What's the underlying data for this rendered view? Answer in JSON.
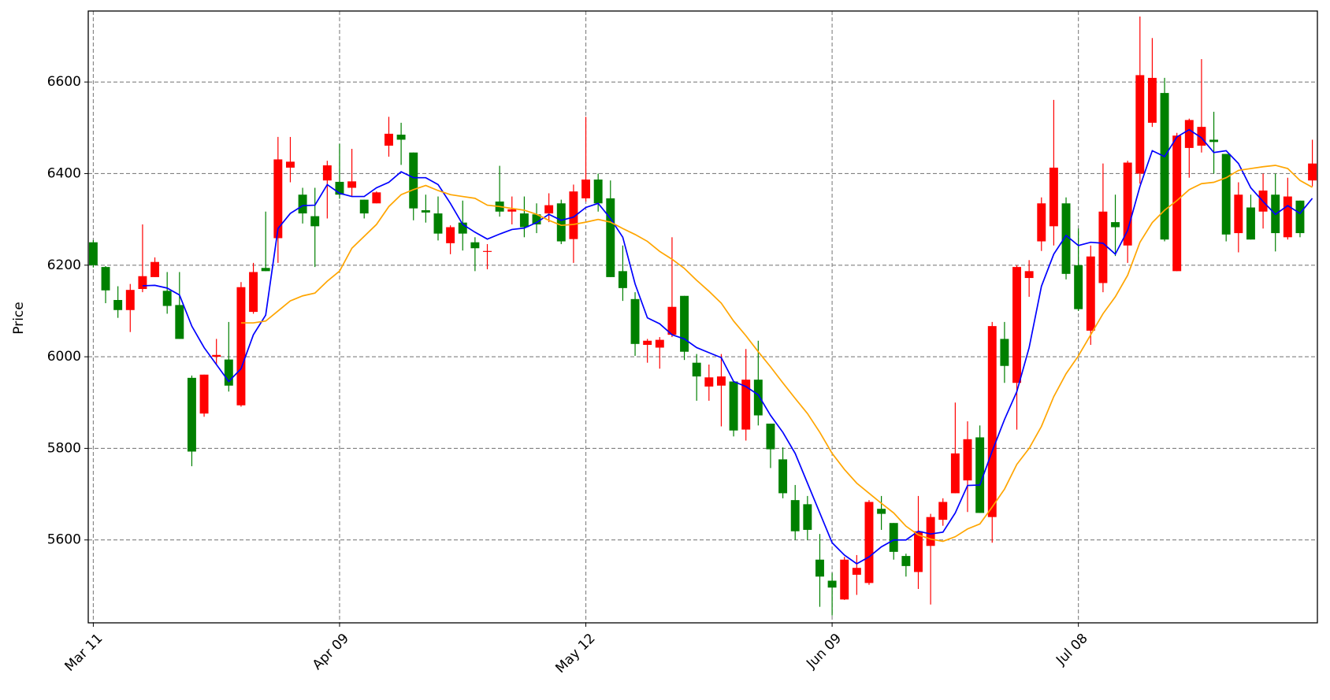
{
  "chart_data": {
    "type": "candlestick",
    "y_label": "Price",
    "ylim": [
      5419,
      6755
    ],
    "yticks": [
      5600,
      5800,
      6000,
      6200,
      6400,
      6600
    ],
    "grid": true,
    "up_color": "red",
    "down_color": "green",
    "categories": [
      "Mar 11",
      null,
      null,
      null,
      null,
      null,
      null,
      null,
      null,
      null,
      null,
      null,
      null,
      null,
      null,
      null,
      null,
      null,
      null,
      null,
      "Apr 09",
      null,
      null,
      null,
      null,
      null,
      null,
      null,
      null,
      null,
      null,
      null,
      null,
      null,
      null,
      null,
      null,
      null,
      null,
      null,
      "May 12",
      null,
      null,
      null,
      null,
      null,
      null,
      null,
      null,
      null,
      null,
      null,
      null,
      null,
      null,
      null,
      null,
      null,
      null,
      null,
      "Jun 09",
      null,
      null,
      null,
      null,
      null,
      null,
      null,
      null,
      null,
      null,
      null,
      null,
      null,
      null,
      null,
      null,
      null,
      null,
      null,
      "Jul 08",
      null,
      null,
      null,
      null,
      null,
      null,
      null,
      null,
      null,
      null,
      null,
      null,
      null,
      null,
      null,
      null,
      null,
      null,
      null
    ],
    "open": [
      6250,
      6196,
      6124,
      6102,
      6148,
      6174,
      6144,
      6113,
      5954,
      5876,
      6000,
      5994,
      5894,
      6098,
      6194,
      6259,
      6413,
      6354,
      6307,
      6385,
      6382,
      6369,
      6343,
      6335,
      6461,
      6485,
      6446,
      6320,
      6313,
      6248,
      6293,
      6250,
      6229,
      6339,
      6317,
      6313,
      6311,
      6313,
      6335,
      6257,
      6346,
      6387,
      6346,
      6187,
      6126,
      6026,
      6020,
      6048,
      6133,
      5987,
      5935,
      5937,
      5946,
      5841,
      5950,
      5854,
      5776,
      5687,
      5678,
      5557,
      5511,
      5470,
      5524,
      5506,
      5668,
      5637,
      5565,
      5530,
      5587,
      5644,
      5702,
      5730,
      5824,
      5650,
      6039,
      5943,
      6172,
      6252,
      6285,
      6335,
      6200,
      6057,
      6161,
      6294,
      6243,
      6400,
      6511,
      6576,
      6187,
      6456,
      6461,
      6474,
      6443,
      6270,
      6326,
      6317,
      6354,
      6261,
      6341,
      6385
    ],
    "high": [
      6255,
      6198,
      6154,
      6159,
      6289,
      6217,
      6185,
      6185,
      5959,
      5961,
      6039,
      6076,
      6163,
      6205,
      6317,
      6480,
      6480,
      6369,
      6369,
      6428,
      6465,
      6454,
      6343,
      6361,
      6524,
      6511,
      6446,
      6354,
      6350,
      6287,
      6341,
      6261,
      6246,
      6417,
      6350,
      6350,
      6335,
      6357,
      6343,
      6376,
      6524,
      6400,
      6385,
      6243,
      6141,
      6039,
      6043,
      6261,
      6133,
      6006,
      5983,
      6006,
      5946,
      6017,
      6035,
      5854,
      5802,
      5720,
      5696,
      5613,
      5528,
      5563,
      5567,
      5687,
      5696,
      5637,
      5570,
      5696,
      5657,
      5691,
      5900,
      5859,
      5850,
      6076,
      6076,
      6200,
      6211,
      6348,
      6561,
      6348,
      6280,
      6243,
      6422,
      6354,
      6428,
      6743,
      6696,
      6609,
      6489,
      6520,
      6650,
      6535,
      6443,
      6381,
      6354,
      6400,
      6400,
      6391,
      6341,
      6474
    ],
    "low": [
      6195,
      6117,
      6085,
      6054,
      6141,
      6174,
      6094,
      6039,
      5761,
      5869,
      5983,
      5924,
      5891,
      6094,
      6187,
      6205,
      6381,
      6291,
      6196,
      6302,
      6345,
      6350,
      6302,
      6335,
      6437,
      6419,
      6298,
      6293,
      6254,
      6224,
      6232,
      6187,
      6191,
      6306,
      6289,
      6261,
      6270,
      6294,
      6246,
      6205,
      6339,
      6317,
      6174,
      6122,
      6002,
      5987,
      5974,
      6043,
      5993,
      5904,
      5904,
      5848,
      5826,
      5817,
      5850,
      5757,
      5691,
      5600,
      5600,
      5454,
      5435,
      5469,
      5480,
      5502,
      5622,
      5557,
      5520,
      5493,
      5459,
      5631,
      5702,
      5661,
      5659,
      5594,
      5943,
      5841,
      6131,
      6231,
      6243,
      6169,
      6100,
      6026,
      6141,
      6220,
      6205,
      6378,
      6502,
      6252,
      6187,
      6391,
      6446,
      6400,
      6252,
      6228,
      6256,
      6280,
      6230,
      6256,
      6261,
      6372
    ],
    "close": [
      6200,
      6145,
      6102,
      6146,
      6176,
      6207,
      6111,
      6039,
      5793,
      5961,
      6004,
      5937,
      6152,
      6185,
      6187,
      6431,
      6426,
      6313,
      6285,
      6418,
      6354,
      6383,
      6313,
      6359,
      6487,
      6474,
      6324,
      6315,
      6269,
      6283,
      6269,
      6237,
      6231,
      6317,
      6322,
      6283,
      6289,
      6331,
      6252,
      6361,
      6387,
      6335,
      6174,
      6150,
      6028,
      6035,
      6037,
      6109,
      6011,
      5957,
      5955,
      5957,
      5839,
      5950,
      5872,
      5798,
      5702,
      5619,
      5622,
      5520,
      5496,
      5557,
      5539,
      5683,
      5657,
      5574,
      5543,
      5619,
      5650,
      5683,
      5789,
      5820,
      5659,
      6067,
      5980,
      6196,
      6187,
      6335,
      6413,
      6181,
      6104,
      6219,
      6317,
      6283,
      6424,
      6615,
      6609,
      6256,
      6483,
      6517,
      6502,
      6469,
      6267,
      6354,
      6256,
      6363,
      6270,
      6350,
      6270,
      6422
    ],
    "series": [
      {
        "color": "blue",
        "values": [
          null,
          null,
          null,
          null,
          6155,
          6156,
          6150,
          6135,
          6067,
          6020,
          5983,
          5946,
          5974,
          6048,
          6091,
          6280,
          6313,
          6330,
          6331,
          6376,
          6357,
          6350,
          6350,
          6369,
          6381,
          6404,
          6391,
          6391,
          6376,
          6335,
          6289,
          6272,
          6257,
          6268,
          6278,
          6281,
          6293,
          6311,
          6298,
          6305,
          6326,
          6335,
          6302,
          6261,
          6159,
          6085,
          6072,
          6048,
          6039,
          6020,
          6009,
          5998,
          5946,
          5935,
          5917,
          5872,
          5835,
          5789,
          5724,
          5659,
          5594,
          5567,
          5548,
          5563,
          5585,
          5600,
          5600,
          5619,
          5613,
          5617,
          5659,
          5719,
          5720,
          5794,
          5863,
          5924,
          6020,
          6154,
          6224,
          6265,
          6243,
          6250,
          6248,
          6224,
          6276,
          6372,
          6450,
          6437,
          6480,
          6496,
          6478,
          6446,
          6450,
          6422,
          6369,
          6339,
          6311,
          6330,
          6313,
          6346
        ]
      },
      {
        "color": "orange",
        "values": [
          null,
          null,
          null,
          null,
          null,
          null,
          null,
          null,
          null,
          null,
          null,
          null,
          6074,
          6074,
          6078,
          6100,
          6122,
          6133,
          6139,
          6165,
          6187,
          6237,
          6263,
          6289,
          6328,
          6354,
          6365,
          6374,
          6363,
          6354,
          6350,
          6346,
          6331,
          6328,
          6324,
          6320,
          6311,
          6298,
          6287,
          6289,
          6294,
          6300,
          6294,
          6280,
          6267,
          6252,
          6230,
          6213,
          6193,
          6167,
          6143,
          6117,
          6078,
          6046,
          6011,
          5978,
          5943,
          5909,
          5876,
          5835,
          5789,
          5754,
          5724,
          5702,
          5680,
          5659,
          5630,
          5611,
          5602,
          5597,
          5607,
          5624,
          5635,
          5672,
          5711,
          5765,
          5800,
          5848,
          5913,
          5963,
          6002,
          6048,
          6094,
          6131,
          6178,
          6250,
          6293,
          6320,
          6341,
          6365,
          6378,
          6381,
          6391,
          6407,
          6411,
          6415,
          6418,
          6411,
          6385,
          6370
        ]
      }
    ]
  }
}
